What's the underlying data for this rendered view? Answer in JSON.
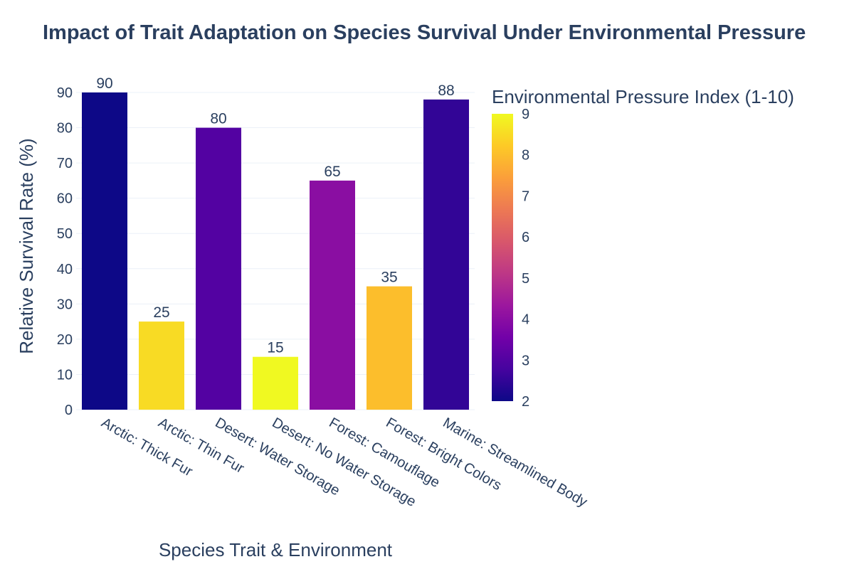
{
  "chart_data": {
    "type": "bar",
    "title": "Impact of Trait Adaptation on Species Survival Under Environmental Pressure",
    "xlabel": "Species Trait & Environment",
    "ylabel": "Relative Survival Rate (%)",
    "ylim": [
      0,
      90
    ],
    "yticks": [
      0,
      10,
      20,
      30,
      40,
      50,
      60,
      70,
      80,
      90
    ],
    "grid": true,
    "categories": [
      "Arctic: Thick Fur",
      "Arctic: Thin Fur",
      "Desert: Water Storage",
      "Desert: No Water Storage",
      "Forest: Camouflage",
      "Forest: Bright Colors",
      "Marine: Streamlined Body"
    ],
    "values": [
      90,
      25,
      80,
      15,
      65,
      35,
      88
    ],
    "value_labels": [
      "90",
      "25",
      "80",
      "15",
      "65",
      "35",
      "88"
    ],
    "color_values": [
      2,
      8.5,
      3,
      9,
      4,
      8,
      2.5
    ],
    "colorbar": {
      "title": "Environmental Pressure Index (1-10)",
      "range": [
        2,
        9
      ],
      "ticks": [
        2,
        3,
        4,
        5,
        6,
        7,
        8,
        9
      ],
      "tick_labels": [
        "2",
        "3",
        "4",
        "5",
        "6",
        "7",
        "8",
        "9"
      ],
      "colorscale": [
        "#0d0887",
        "#46039f",
        "#7201a8",
        "#9c179e",
        "#bd3786",
        "#d8576b",
        "#ed7953",
        "#fb9f3a",
        "#fdca26",
        "#f0f921"
      ],
      "placement": "right"
    }
  }
}
